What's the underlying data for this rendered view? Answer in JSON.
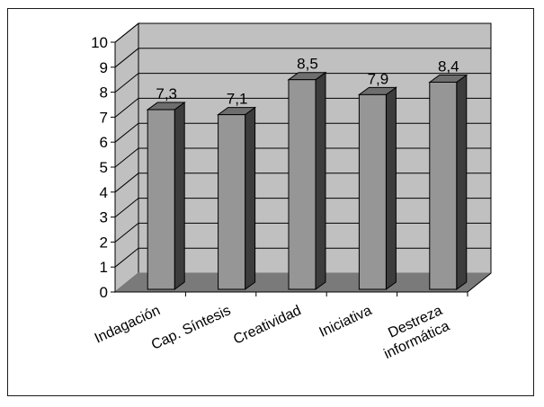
{
  "chart_data": {
    "type": "bar",
    "title": "",
    "xlabel": "",
    "ylabel": "",
    "ylim": [
      0,
      10
    ],
    "yticks": [
      0,
      1,
      2,
      3,
      4,
      5,
      6,
      7,
      8,
      9,
      10
    ],
    "categories": [
      [
        "Indagación"
      ],
      [
        "Cap. Síntesis"
      ],
      [
        "Creatividad"
      ],
      [
        "Iniciativa"
      ],
      [
        "Destreza",
        "informática"
      ]
    ],
    "values": [
      7.3,
      7.1,
      8.5,
      7.9,
      8.4
    ],
    "data_labels": [
      "7,3",
      "7,1",
      "8,5",
      "7,9",
      "8,4"
    ],
    "grid": true,
    "style": "3d",
    "colors": {
      "wall": "#c0c0c0",
      "floor": "#7a7a7a",
      "bar_front": "#969696",
      "bar_side": "#3c3c3c",
      "bar_top": "#6e6e6e",
      "grid": "#000000"
    }
  }
}
